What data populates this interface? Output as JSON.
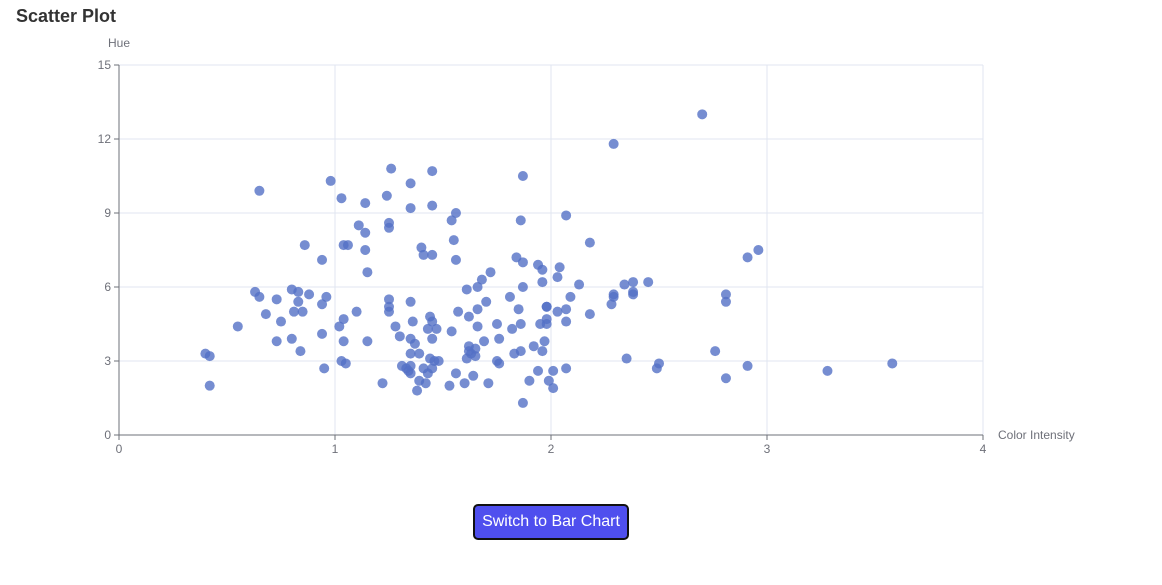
{
  "page": {
    "title": "Scatter Plot"
  },
  "controls": {
    "switch_label": "Switch to Bar Chart"
  },
  "colors": {
    "point": "#5470c6",
    "grid": "#e0e6f1",
    "axis": "#6e7079"
  },
  "chart_data": {
    "type": "scatter",
    "xlabel": "Color Intensity",
    "ylabel": "Hue",
    "xlim": [
      0,
      4
    ],
    "ylim": [
      0,
      15
    ],
    "x_ticks": [
      0,
      1,
      2,
      3,
      4
    ],
    "y_ticks": [
      0,
      3,
      6,
      9,
      12,
      15
    ],
    "grid": true,
    "points": [
      [
        0.4,
        3.3
      ],
      [
        0.42,
        3.2
      ],
      [
        0.42,
        2.0
      ],
      [
        0.55,
        4.4
      ],
      [
        0.63,
        5.8
      ],
      [
        0.65,
        9.9
      ],
      [
        0.65,
        5.6
      ],
      [
        0.68,
        4.9
      ],
      [
        0.73,
        5.5
      ],
      [
        0.73,
        3.8
      ],
      [
        0.75,
        4.6
      ],
      [
        0.8,
        5.9
      ],
      [
        0.8,
        3.9
      ],
      [
        0.81,
        5.0
      ],
      [
        0.83,
        5.8
      ],
      [
        0.83,
        5.4
      ],
      [
        0.84,
        3.4
      ],
      [
        0.85,
        5.0
      ],
      [
        0.86,
        7.7
      ],
      [
        0.88,
        5.7
      ],
      [
        0.94,
        7.1
      ],
      [
        0.94,
        5.3
      ],
      [
        0.94,
        4.1
      ],
      [
        0.95,
        2.7
      ],
      [
        0.96,
        5.6
      ],
      [
        0.98,
        10.3
      ],
      [
        1.02,
        4.4
      ],
      [
        1.03,
        9.6
      ],
      [
        1.03,
        3.0
      ],
      [
        1.04,
        7.7
      ],
      [
        1.04,
        4.7
      ],
      [
        1.04,
        3.8
      ],
      [
        1.05,
        2.9
      ],
      [
        1.06,
        7.7
      ],
      [
        1.1,
        5.0
      ],
      [
        1.11,
        8.5
      ],
      [
        1.14,
        9.4
      ],
      [
        1.14,
        8.2
      ],
      [
        1.14,
        7.5
      ],
      [
        1.15,
        6.6
      ],
      [
        1.15,
        3.8
      ],
      [
        1.22,
        2.1
      ],
      [
        1.24,
        9.7
      ],
      [
        1.25,
        8.6
      ],
      [
        1.25,
        8.4
      ],
      [
        1.25,
        5.5
      ],
      [
        1.25,
        5.2
      ],
      [
        1.25,
        5.0
      ],
      [
        1.26,
        10.8
      ],
      [
        1.28,
        4.4
      ],
      [
        1.3,
        4.0
      ],
      [
        1.31,
        2.8
      ],
      [
        1.33,
        2.7
      ],
      [
        1.34,
        2.6
      ],
      [
        1.35,
        10.2
      ],
      [
        1.35,
        9.2
      ],
      [
        1.35,
        5.4
      ],
      [
        1.35,
        3.9
      ],
      [
        1.35,
        3.3
      ],
      [
        1.35,
        2.8
      ],
      [
        1.35,
        2.5
      ],
      [
        1.36,
        4.6
      ],
      [
        1.37,
        3.7
      ],
      [
        1.38,
        1.8
      ],
      [
        1.39,
        3.3
      ],
      [
        1.39,
        2.2
      ],
      [
        1.4,
        7.6
      ],
      [
        1.41,
        7.3
      ],
      [
        1.41,
        2.7
      ],
      [
        1.42,
        2.1
      ],
      [
        1.43,
        4.3
      ],
      [
        1.43,
        2.5
      ],
      [
        1.44,
        4.8
      ],
      [
        1.44,
        3.1
      ],
      [
        1.45,
        10.7
      ],
      [
        1.45,
        9.3
      ],
      [
        1.45,
        7.3
      ],
      [
        1.45,
        4.6
      ],
      [
        1.45,
        3.9
      ],
      [
        1.45,
        2.7
      ],
      [
        1.46,
        3.0
      ],
      [
        1.47,
        4.3
      ],
      [
        1.48,
        3.0
      ],
      [
        1.53,
        2.0
      ],
      [
        1.54,
        8.7
      ],
      [
        1.54,
        4.2
      ],
      [
        1.55,
        7.9
      ],
      [
        1.56,
        9.0
      ],
      [
        1.56,
        7.1
      ],
      [
        1.56,
        2.5
      ],
      [
        1.57,
        5.0
      ],
      [
        1.6,
        2.1
      ],
      [
        1.61,
        3.1
      ],
      [
        1.61,
        5.9
      ],
      [
        1.62,
        3.4
      ],
      [
        1.62,
        3.6
      ],
      [
        1.62,
        4.8
      ],
      [
        1.63,
        3.3
      ],
      [
        1.64,
        2.4
      ],
      [
        1.65,
        3.5
      ],
      [
        1.65,
        3.2
      ],
      [
        1.66,
        6.0
      ],
      [
        1.66,
        5.1
      ],
      [
        1.66,
        4.4
      ],
      [
        1.68,
        6.3
      ],
      [
        1.69,
        3.8
      ],
      [
        1.7,
        5.4
      ],
      [
        1.71,
        2.1
      ],
      [
        1.72,
        6.6
      ],
      [
        1.75,
        3.0
      ],
      [
        1.75,
        4.5
      ],
      [
        1.76,
        3.9
      ],
      [
        1.76,
        2.9
      ],
      [
        1.81,
        5.6
      ],
      [
        1.82,
        4.3
      ],
      [
        1.83,
        3.3
      ],
      [
        1.84,
        7.2
      ],
      [
        1.85,
        5.1
      ],
      [
        1.86,
        8.7
      ],
      [
        1.86,
        4.5
      ],
      [
        1.86,
        3.4
      ],
      [
        1.87,
        10.5
      ],
      [
        1.87,
        7.0
      ],
      [
        1.87,
        6.0
      ],
      [
        1.87,
        1.3
      ],
      [
        1.9,
        2.2
      ],
      [
        1.92,
        3.6
      ],
      [
        1.94,
        6.9
      ],
      [
        1.94,
        2.6
      ],
      [
        1.95,
        4.5
      ],
      [
        1.96,
        6.7
      ],
      [
        1.96,
        6.2
      ],
      [
        1.96,
        3.4
      ],
      [
        1.97,
        3.8
      ],
      [
        1.98,
        5.2
      ],
      [
        1.98,
        5.2
      ],
      [
        1.98,
        4.7
      ],
      [
        1.98,
        4.5
      ],
      [
        1.99,
        2.2
      ],
      [
        2.01,
        2.6
      ],
      [
        2.01,
        1.9
      ],
      [
        2.03,
        6.4
      ],
      [
        2.03,
        5.0
      ],
      [
        2.04,
        6.8
      ],
      [
        2.07,
        8.9
      ],
      [
        2.07,
        5.1
      ],
      [
        2.07,
        4.6
      ],
      [
        2.07,
        2.7
      ],
      [
        2.09,
        5.6
      ],
      [
        2.13,
        6.1
      ],
      [
        2.18,
        7.8
      ],
      [
        2.18,
        4.9
      ],
      [
        2.28,
        5.3
      ],
      [
        2.29,
        11.8
      ],
      [
        2.29,
        5.7
      ],
      [
        2.29,
        5.6
      ],
      [
        2.34,
        6.1
      ],
      [
        2.35,
        3.1
      ],
      [
        2.38,
        6.2
      ],
      [
        2.38,
        5.8
      ],
      [
        2.38,
        5.7
      ],
      [
        2.45,
        6.2
      ],
      [
        2.49,
        2.7
      ],
      [
        2.5,
        2.9
      ],
      [
        2.7,
        13.0
      ],
      [
        2.76,
        3.4
      ],
      [
        2.81,
        5.7
      ],
      [
        2.81,
        5.4
      ],
      [
        2.81,
        2.3
      ],
      [
        2.91,
        7.2
      ],
      [
        2.91,
        2.8
      ],
      [
        2.96,
        7.5
      ],
      [
        3.28,
        2.6
      ],
      [
        3.58,
        2.9
      ]
    ]
  }
}
